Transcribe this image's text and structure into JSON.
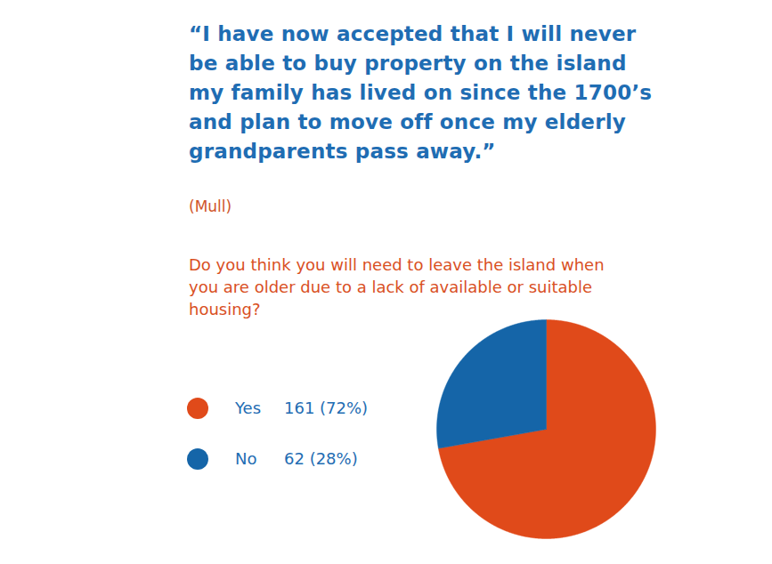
{
  "chart_data": {
    "type": "pie",
    "quote": "“I have now accepted that I will never\nbe able to buy property on the island\nmy family has lived on since the 1700’s\nand plan to move off once my elderly\ngrandparents pass away.”",
    "quote_source": "(Mull)",
    "title": "Do you think you will need to leave the island when\nyou are older due to a lack of available or suitable\nhousing?",
    "categories": [
      "Yes",
      "No"
    ],
    "values": [
      161,
      62
    ],
    "value_labels": [
      "161 (72%)",
      "62 (28%)"
    ],
    "colors": [
      "#e04a1a",
      "#1565a8"
    ],
    "legend": "left"
  }
}
